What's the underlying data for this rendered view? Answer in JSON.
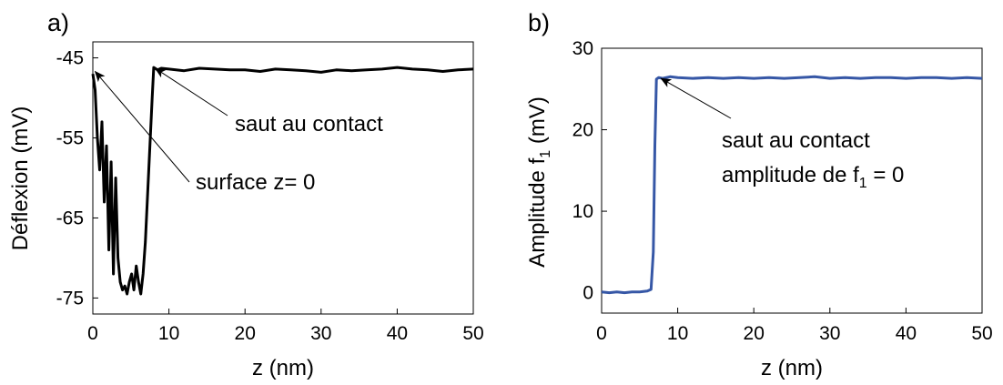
{
  "chart_data": [
    {
      "panel_label": "a)",
      "type": "line",
      "xlabel": "z (nm)",
      "ylabel": "Déflexion (mV)",
      "xlim": [
        0,
        50
      ],
      "ylim": [
        -77,
        -43
      ],
      "xticks": [
        "0",
        "10",
        "20",
        "30",
        "40",
        "50"
      ],
      "yticks": [
        "-45",
        "-55",
        "-65",
        "-75"
      ],
      "ytick_values": [
        -45,
        -55,
        -65,
        -75
      ],
      "xtick_values": [
        0,
        10,
        20,
        30,
        40,
        50
      ],
      "grid": false,
      "color": "#000000",
      "series": [
        {
          "x": [
            0,
            0.3,
            0.6,
            0.9,
            1.2,
            1.5,
            1.8,
            2.1,
            2.4,
            2.7,
            3.0,
            3.3,
            3.6,
            3.9,
            4.2,
            4.5,
            4.8,
            5.1,
            5.4,
            5.7,
            6.0,
            6.3,
            6.6,
            6.9,
            7.2,
            7.5,
            7.8,
            8.0,
            8.5,
            9,
            10,
            12,
            14,
            16,
            18,
            20,
            22,
            24,
            26,
            28,
            30,
            32,
            34,
            36,
            38,
            40,
            42,
            44,
            46,
            48,
            50
          ],
          "y": [
            -47,
            -49,
            -55,
            -59,
            -53,
            -63,
            -56,
            -69,
            -58,
            -72,
            -60,
            -70,
            -73,
            -74,
            -73.5,
            -74.5,
            -73,
            -72,
            -74,
            -71,
            -73,
            -74.5,
            -72,
            -68,
            -62,
            -56,
            -50,
            -46.2,
            -46.5,
            -46.3,
            -46.4,
            -46.6,
            -46.3,
            -46.4,
            -46.5,
            -46.5,
            -46.7,
            -46.4,
            -46.5,
            -46.6,
            -46.8,
            -46.5,
            -46.6,
            -46.5,
            -46.4,
            -46.2,
            -46.4,
            -46.5,
            -46.7,
            -46.5,
            -46.4
          ]
        }
      ],
      "annotations": [
        {
          "text": "saut au contact",
          "arrow_to": [
            8.2,
            -46.3
          ]
        },
        {
          "text": "surface z= 0",
          "arrow_to": [
            0.3,
            -46.7
          ]
        }
      ]
    },
    {
      "panel_label": "b)",
      "type": "line",
      "xlabel": "z (nm)",
      "ylabel_main": "Amplitude f",
      "ylabel_sub": "1",
      "ylabel_unit": " (mV)",
      "xlim": [
        0,
        50
      ],
      "ylim": [
        -2.5,
        30
      ],
      "xticks": [
        "0",
        "10",
        "20",
        "30",
        "40",
        "50"
      ],
      "yticks": [
        "0",
        "10",
        "20",
        "30"
      ],
      "ytick_values": [
        0,
        10,
        20,
        30
      ],
      "xtick_values": [
        0,
        10,
        20,
        30,
        40,
        50
      ],
      "grid": false,
      "color": "#3657a6",
      "series": [
        {
          "x": [
            0,
            1,
            2,
            3,
            4,
            5,
            6,
            6.5,
            6.8,
            7.0,
            7.2,
            7.5,
            8,
            9,
            10,
            12,
            14,
            16,
            18,
            20,
            22,
            24,
            26,
            28,
            30,
            32,
            34,
            36,
            38,
            40,
            42,
            44,
            46,
            48,
            50
          ],
          "y": [
            0.1,
            0.0,
            0.1,
            0.0,
            0.1,
            0.1,
            0.2,
            0.4,
            5,
            18,
            26.2,
            26.4,
            26.3,
            26.5,
            26.4,
            26.3,
            26.4,
            26.3,
            26.4,
            26.3,
            26.4,
            26.3,
            26.4,
            26.5,
            26.3,
            26.4,
            26.3,
            26.4,
            26.4,
            26.3,
            26.4,
            26.4,
            26.3,
            26.4,
            26.3
          ]
        }
      ],
      "annotations": [
        {
          "line1": "saut au contact",
          "line2_main": "amplitude de f",
          "line2_sub": "1",
          "line2_tail": " = 0",
          "arrow_to": [
            7.8,
            26.3
          ]
        }
      ]
    }
  ]
}
